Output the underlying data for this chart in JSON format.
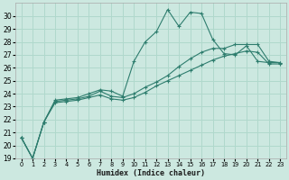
{
  "xlabel": "Humidex (Indice chaleur)",
  "xlim": [
    -0.5,
    23.5
  ],
  "ylim": [
    19,
    31
  ],
  "xticks": [
    0,
    1,
    2,
    3,
    4,
    5,
    6,
    7,
    8,
    9,
    10,
    11,
    12,
    13,
    14,
    15,
    16,
    17,
    18,
    19,
    20,
    21,
    22,
    23
  ],
  "yticks": [
    19,
    20,
    21,
    22,
    23,
    24,
    25,
    26,
    27,
    28,
    29,
    30
  ],
  "bg_color": "#cce8e0",
  "line_color": "#2e7d6e",
  "grid_color": "#b0d8cc",
  "series1_x": [
    0,
    1,
    2,
    3,
    4,
    5,
    6,
    7,
    8,
    9,
    10,
    11,
    12,
    13,
    14,
    15,
    16,
    17,
    18,
    19,
    20,
    21,
    22,
    23
  ],
  "series1_y": [
    20.6,
    19.0,
    21.8,
    23.5,
    23.6,
    23.7,
    24.0,
    24.3,
    24.2,
    23.8,
    26.5,
    28.0,
    28.8,
    30.5,
    29.2,
    30.3,
    30.2,
    28.2,
    27.1,
    27.0,
    27.7,
    26.5,
    26.4,
    26.4
  ],
  "series2_x": [
    0,
    1,
    2,
    3,
    4,
    5,
    6,
    7,
    8,
    9,
    10,
    11,
    12,
    13,
    14,
    15,
    16,
    17,
    18,
    19,
    20,
    21,
    22,
    23
  ],
  "series2_y": [
    20.6,
    19.0,
    21.8,
    23.4,
    23.5,
    23.6,
    23.8,
    24.2,
    23.8,
    23.7,
    24.0,
    24.5,
    24.9,
    25.4,
    26.1,
    26.7,
    27.2,
    27.5,
    27.5,
    27.8,
    27.8,
    27.8,
    26.5,
    26.4
  ],
  "series3_x": [
    0,
    1,
    2,
    3,
    4,
    5,
    6,
    7,
    8,
    9,
    10,
    11,
    12,
    13,
    14,
    15,
    16,
    17,
    18,
    19,
    20,
    21,
    22,
    23
  ],
  "series3_y": [
    20.6,
    19.0,
    21.8,
    23.3,
    23.4,
    23.5,
    23.7,
    23.9,
    23.6,
    23.5,
    23.7,
    24.1,
    24.6,
    25.0,
    25.4,
    25.8,
    26.2,
    26.6,
    26.9,
    27.1,
    27.3,
    27.2,
    26.3,
    26.3
  ]
}
